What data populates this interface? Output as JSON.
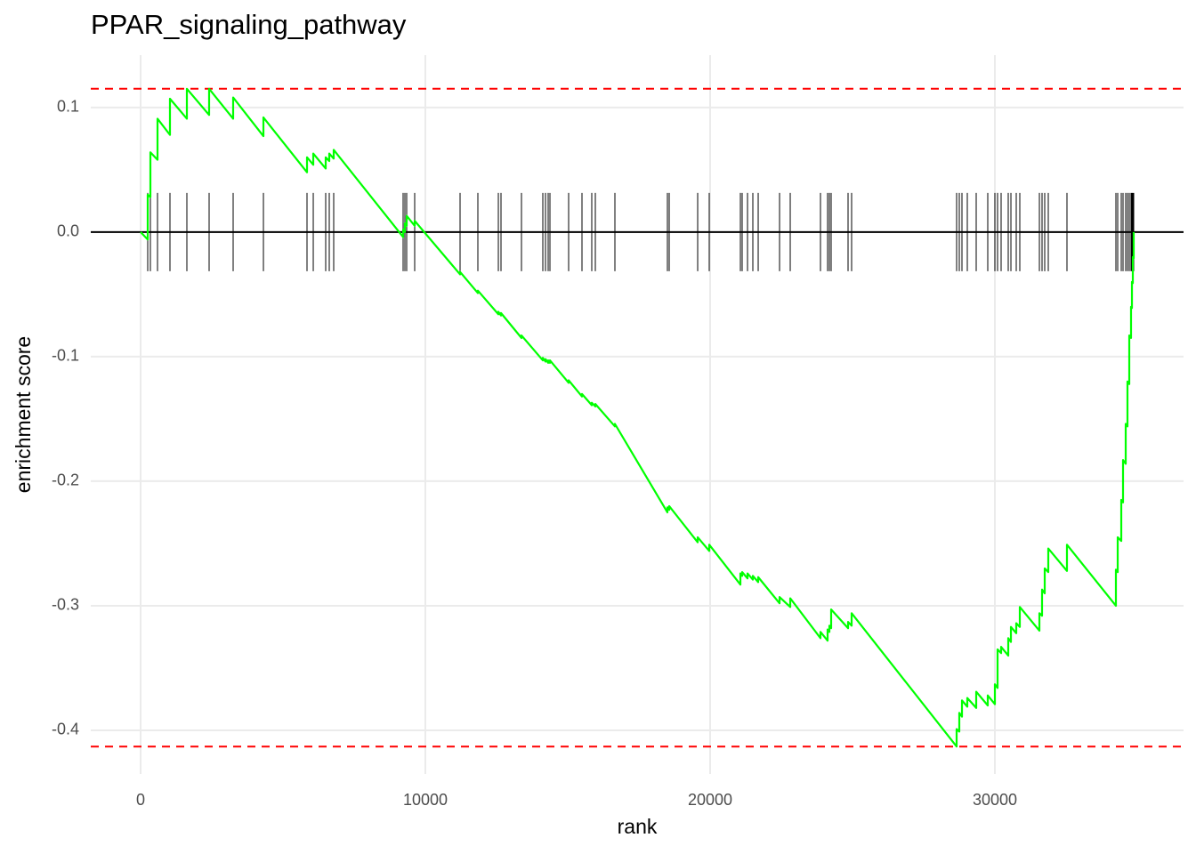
{
  "chart_data": {
    "type": "line",
    "title": "PPAR_signaling_pathway",
    "x_label": "rank",
    "y_label": "enrichment score",
    "color": "#00ff00",
    "hit_color": "#000000",
    "threshold_color": "#ff0000",
    "grid": true,
    "xlim": [
      -1750,
      36625
    ],
    "ylim": [
      -0.435,
      0.142
    ],
    "xticks": [
      0,
      10000,
      20000,
      30000
    ],
    "yticks": [
      -0.4,
      -0.3,
      -0.2,
      -0.1,
      {
        "value": 0,
        "label": "0.0"
      },
      0.1
    ],
    "max_es": 0.115,
    "min_es": -0.413,
    "hits": [
      250,
      344,
      594,
      1031,
      1625,
      2406,
      3250,
      4313,
      5844,
      6063,
      6500,
      6625,
      6781,
      9219,
      9281,
      9344,
      9625,
      11219,
      11844,
      12563,
      12656,
      13375,
      14125,
      14219,
      14313,
      14375,
      15031,
      15500,
      15844,
      15969,
      16656,
      18500,
      18563,
      19563,
      19969,
      21063,
      21125,
      21313,
      21500,
      21688,
      22438,
      22813,
      23875,
      24125,
      24188,
      24250,
      24844,
      24969,
      28656,
      28750,
      28844,
      29031,
      29344,
      29750,
      30000,
      30094,
      30219,
      30469,
      30563,
      30750,
      30875,
      31563,
      31656,
      31750,
      31875,
      32531,
      34250,
      34313,
      34438,
      34500,
      34594,
      34656,
      34719,
      34781,
      34813,
      34844,
      34875
    ],
    "x": [
      0,
      250,
      250,
      344,
      344,
      594,
      594,
      1031,
      1031,
      1625,
      1625,
      2406,
      2406,
      3250,
      3250,
      4313,
      4313,
      5844,
      5844,
      6063,
      6063,
      6500,
      6500,
      6625,
      6625,
      6781,
      6781,
      9219,
      9219,
      9281,
      9281,
      9344,
      9344,
      9625,
      9625,
      11219,
      11219,
      11844,
      11844,
      12563,
      12563,
      12656,
      12656,
      13375,
      13375,
      14125,
      14125,
      14219,
      14219,
      14313,
      14313,
      14375,
      14375,
      15031,
      15031,
      15500,
      15500,
      15844,
      15844,
      15969,
      15969,
      16656,
      16656,
      18500,
      18500,
      18563,
      18563,
      19563,
      19563,
      19969,
      19969,
      21063,
      21063,
      21125,
      21125,
      21313,
      21313,
      21500,
      21500,
      21688,
      21688,
      22438,
      22438,
      22813,
      22813,
      23875,
      23875,
      24125,
      24125,
      24188,
      24188,
      24250,
      24250,
      24844,
      24844,
      24969,
      24969,
      28656,
      28656,
      28750,
      28750,
      28844,
      28844,
      29031,
      29031,
      29344,
      29344,
      29750,
      29750,
      30000,
      30000,
      30094,
      30094,
      30219,
      30219,
      30469,
      30469,
      30563,
      30563,
      30750,
      30750,
      30875,
      30875,
      31563,
      31563,
      31656,
      31656,
      31750,
      31750,
      31875,
      31875,
      32531,
      32531,
      34250,
      34250,
      34313,
      34313,
      34438,
      34438,
      34500,
      34500,
      34594,
      34594,
      34656,
      34656,
      34719,
      34719,
      34781,
      34781,
      34813,
      34813,
      34844,
      34844,
      34875,
      34875
    ],
    "values": [
      0,
      -0.006,
      0.03,
      0.028,
      0.064,
      0.058,
      0.091,
      0.078,
      0.107,
      0.091,
      0.115,
      0.094,
      0.115,
      0.091,
      0.108,
      0.077,
      0.092,
      0.048,
      0.06,
      0.054,
      0.063,
      0.051,
      0.06,
      0.057,
      0.063,
      0.059,
      0.066,
      -0.004,
      0.002,
      0.0,
      0.007,
      0.005,
      0.013,
      0.005,
      0.009,
      -0.034,
      -0.032,
      -0.049,
      -0.047,
      -0.066,
      -0.064,
      -0.067,
      -0.065,
      -0.085,
      -0.083,
      -0.103,
      -0.101,
      -0.104,
      -0.102,
      -0.105,
      -0.103,
      -0.105,
      -0.103,
      -0.121,
      -0.119,
      -0.132,
      -0.13,
      -0.139,
      -0.137,
      -0.14,
      -0.138,
      -0.156,
      -0.154,
      -0.225,
      -0.221,
      -0.223,
      -0.22,
      -0.249,
      -0.245,
      -0.256,
      -0.251,
      -0.283,
      -0.274,
      -0.276,
      -0.273,
      -0.278,
      -0.274,
      -0.279,
      -0.276,
      -0.281,
      -0.277,
      -0.298,
      -0.293,
      -0.301,
      -0.294,
      -0.326,
      -0.321,
      -0.328,
      -0.319,
      -0.321,
      -0.316,
      -0.318,
      -0.303,
      -0.318,
      -0.313,
      -0.316,
      -0.306,
      -0.413,
      -0.399,
      -0.401,
      -0.386,
      -0.389,
      -0.376,
      -0.381,
      -0.374,
      -0.382,
      -0.369,
      -0.38,
      -0.372,
      -0.379,
      -0.363,
      -0.366,
      -0.335,
      -0.338,
      -0.333,
      -0.34,
      -0.326,
      -0.329,
      -0.317,
      -0.322,
      -0.314,
      -0.317,
      -0.301,
      -0.32,
      -0.306,
      -0.308,
      -0.287,
      -0.29,
      -0.27,
      -0.273,
      -0.254,
      -0.272,
      -0.251,
      -0.3,
      -0.271,
      -0.273,
      -0.245,
      -0.248,
      -0.215,
      -0.217,
      -0.183,
      -0.186,
      -0.154,
      -0.156,
      -0.12,
      -0.122,
      -0.083,
      -0.085,
      -0.06,
      -0.061,
      -0.04,
      -0.041,
      -0.02,
      -0.021,
      0.0
    ]
  }
}
